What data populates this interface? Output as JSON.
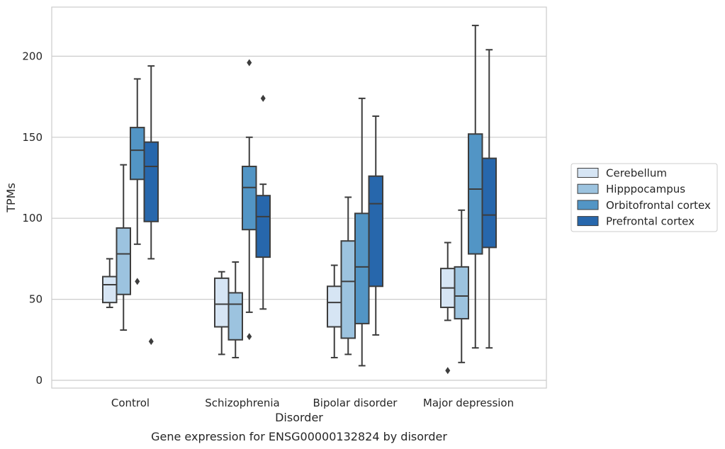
{
  "chart_data": {
    "type": "box",
    "title": "",
    "caption": "Gene expression for ENSG00000132824 by disorder",
    "xlabel": "Disorder",
    "ylabel": "TPMs",
    "ylim": [
      -5,
      230
    ],
    "yticks": [
      0,
      50,
      100,
      150,
      200
    ],
    "grid": "horizontal",
    "legend_position": "right",
    "categories": [
      "Control",
      "Schizophrenia",
      "Bipolar disorder",
      "Major depression"
    ],
    "series": [
      {
        "name": "Cerebellum",
        "color": "#d6e5f4",
        "boxes": [
          {
            "whisker_low": 45,
            "q1": 48,
            "median": 59,
            "q3": 64,
            "whisker_high": 75,
            "outliers": []
          },
          {
            "whisker_low": 16,
            "q1": 33,
            "median": 47,
            "q3": 63,
            "whisker_high": 67,
            "outliers": []
          },
          {
            "whisker_low": 14,
            "q1": 33,
            "median": 48,
            "q3": 58,
            "whisker_high": 71,
            "outliers": []
          },
          {
            "whisker_low": 37,
            "q1": 45,
            "median": 57,
            "q3": 69,
            "whisker_high": 85,
            "outliers": [
              6
            ]
          }
        ]
      },
      {
        "name": "Hipppocampus",
        "color": "#9cc3df",
        "boxes": [
          {
            "whisker_low": 31,
            "q1": 53,
            "median": 78,
            "q3": 94,
            "whisker_high": 133,
            "outliers": []
          },
          {
            "whisker_low": 14,
            "q1": 25,
            "median": 47,
            "q3": 54,
            "whisker_high": 73,
            "outliers": []
          },
          {
            "whisker_low": 16,
            "q1": 26,
            "median": 61,
            "q3": 86,
            "whisker_high": 113,
            "outliers": []
          },
          {
            "whisker_low": 11,
            "q1": 38,
            "median": 52,
            "q3": 70,
            "whisker_high": 105,
            "outliers": []
          }
        ]
      },
      {
        "name": "Orbitofrontal cortex",
        "color": "#5295c5",
        "boxes": [
          {
            "whisker_low": 84,
            "q1": 124,
            "median": 142,
            "q3": 156,
            "whisker_high": 186,
            "outliers": [
              61
            ]
          },
          {
            "whisker_low": 42,
            "q1": 93,
            "median": 119,
            "q3": 132,
            "whisker_high": 150,
            "outliers": [
              27,
              196
            ]
          },
          {
            "whisker_low": 9,
            "q1": 35,
            "median": 70,
            "q3": 103,
            "whisker_high": 174,
            "outliers": []
          },
          {
            "whisker_low": 20,
            "q1": 78,
            "median": 118,
            "q3": 152,
            "whisker_high": 219,
            "outliers": []
          }
        ]
      },
      {
        "name": "Prefrontal cortex",
        "color": "#2767ac",
        "boxes": [
          {
            "whisker_low": 75,
            "q1": 98,
            "median": 132,
            "q3": 147,
            "whisker_high": 194,
            "outliers": [
              24
            ]
          },
          {
            "whisker_low": 44,
            "q1": 76,
            "median": 101,
            "q3": 114,
            "whisker_high": 121,
            "outliers": [
              174
            ]
          },
          {
            "whisker_low": 28,
            "q1": 58,
            "median": 109,
            "q3": 126,
            "whisker_high": 163,
            "outliers": []
          },
          {
            "whisker_low": 20,
            "q1": 82,
            "median": 102,
            "q3": 137,
            "whisker_high": 204,
            "outliers": []
          }
        ]
      }
    ]
  }
}
